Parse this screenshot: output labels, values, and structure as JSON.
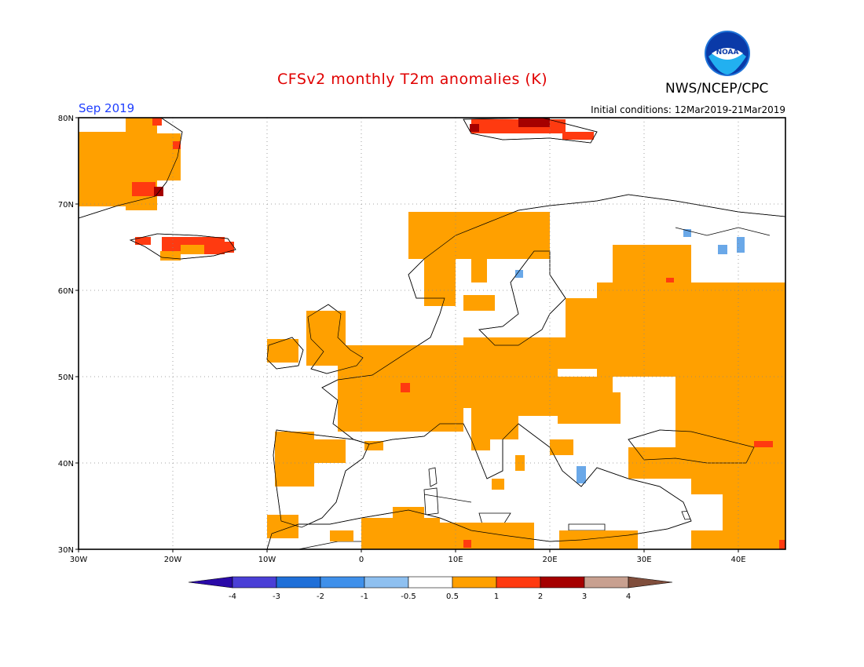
{
  "header": {
    "title": "CFSv2 monthly T2m anomalies (K)",
    "agency": "NWS/NCEP/CPC",
    "valid_month": "Sep 2019",
    "initial_conditions": "Initial conditions: 12Mar2019-21Mar2019",
    "logo_text": "NOAA"
  },
  "map": {
    "projection": "lat-lon",
    "lon_range": [
      -30,
      45
    ],
    "lat_range": [
      30,
      80
    ],
    "lat_ticks": [
      "80N",
      "70N",
      "60N",
      "50N",
      "40N",
      "30N"
    ],
    "lon_ticks": [
      "30W",
      "20W",
      "10W",
      "0",
      "10E",
      "20E",
      "30E",
      "40E"
    ],
    "grid": "dotted"
  },
  "colorbar": {
    "labels": [
      "-4",
      "-3",
      "-2",
      "-1",
      "-0.5",
      "0.5",
      "1",
      "2",
      "3",
      "4"
    ],
    "colors": [
      "#2a0aa8",
      "#4a3fd6",
      "#1f6fd8",
      "#3f90ea",
      "#8ec0f0",
      "#ffffff",
      "#ffa000",
      "#ff3a10",
      "#a50000",
      "#c8a090",
      "#804e3c"
    ]
  },
  "anomaly_classes": {
    "warm_1": "#ffa000",
    "warm_2": "#ff3a10",
    "warm_3": "#a50000",
    "cool_1": "#6aa8e8"
  }
}
